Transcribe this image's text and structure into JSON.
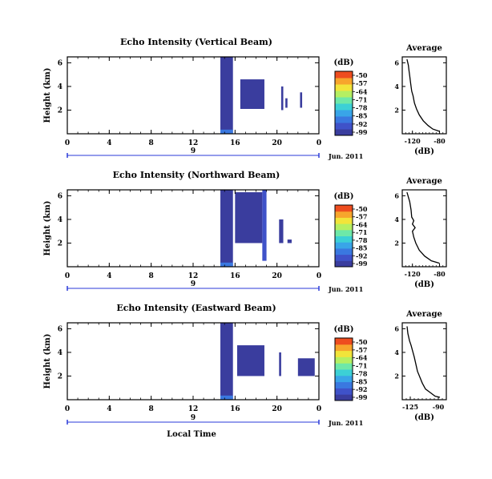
{
  "chart_data": [
    {
      "type": "heatmap",
      "title": "Echo Intensity (Vertical Beam)",
      "ylabel": "Height (km)",
      "xlabel": "",
      "x_ticks": [
        "0",
        "4",
        "8",
        "12",
        "16",
        "20",
        "0"
      ],
      "y_ticks": [
        "6",
        "4",
        "2"
      ],
      "xlim": [
        0,
        24
      ],
      "ylim": [
        0,
        6.5
      ],
      "date_label": "9",
      "month_label": "Jun. 2011",
      "colorbar": {
        "unit": "(dB)",
        "ticks": [
          "-50",
          "-57",
          "-64",
          "-71",
          "-78",
          "-85",
          "-92",
          "-99"
        ],
        "range": [
          -99,
          -50
        ]
      },
      "data_blocks": [
        {
          "x": [
            14.6,
            15.8
          ],
          "y": [
            0,
            6.5
          ],
          "dB": -97
        },
        {
          "x": [
            14.6,
            15.8
          ],
          "y": [
            0,
            0.35
          ],
          "dB": -85
        },
        {
          "x": [
            16.5,
            18.8
          ],
          "y": [
            2.1,
            4.6
          ],
          "dB": -96
        },
        {
          "x": [
            20.4,
            20.6
          ],
          "y": [
            2.0,
            4.0
          ],
          "dB": -96
        },
        {
          "x": [
            20.8,
            21.0
          ],
          "y": [
            2.2,
            3.0
          ],
          "dB": -96
        },
        {
          "x": [
            22.2,
            22.4
          ],
          "y": [
            2.2,
            3.5
          ],
          "dB": -96
        }
      ],
      "profile": {
        "title": "Average",
        "xlabel": "(dB)",
        "x_ticks": [
          "-120",
          "-80"
        ],
        "xlim": [
          -135,
          -70
        ],
        "y_ticks": [
          "6",
          "4",
          "2"
        ],
        "ylim": [
          0,
          6.5
        ],
        "points": [
          [
            -128,
            6.3
          ],
          [
            -126,
            5.8
          ],
          [
            -125,
            5.3
          ],
          [
            -124,
            4.9
          ],
          [
            -123,
            4.4
          ],
          [
            -122,
            4.0
          ],
          [
            -121,
            3.6
          ],
          [
            -119,
            3.2
          ],
          [
            -117,
            2.6
          ],
          [
            -114,
            2.1
          ],
          [
            -110,
            1.6
          ],
          [
            -104,
            1.1
          ],
          [
            -97,
            0.7
          ],
          [
            -90,
            0.4
          ],
          [
            -80,
            0.2
          ]
        ]
      }
    },
    {
      "type": "heatmap",
      "title": "Echo Intensity (Northward Beam)",
      "ylabel": "Height (km)",
      "xlabel": "",
      "x_ticks": [
        "0",
        "4",
        "8",
        "12",
        "16",
        "20",
        "0"
      ],
      "y_ticks": [
        "6",
        "4",
        "2"
      ],
      "xlim": [
        0,
        24
      ],
      "ylim": [
        0,
        6.5
      ],
      "date_label": "9",
      "month_label": "Jun. 2011",
      "colorbar": {
        "unit": "(dB)",
        "ticks": [
          "-50",
          "-57",
          "-64",
          "-71",
          "-78",
          "-85",
          "-92",
          "-99"
        ],
        "range": [
          -99,
          -50
        ]
      },
      "data_blocks": [
        {
          "x": [
            14.6,
            15.8
          ],
          "y": [
            0,
            6.5
          ],
          "dB": -97
        },
        {
          "x": [
            14.6,
            15.8
          ],
          "y": [
            0,
            0.35
          ],
          "dB": -85
        },
        {
          "x": [
            16.0,
            18.6
          ],
          "y": [
            2.0,
            6.3
          ],
          "dB": -96
        },
        {
          "x": [
            18.6,
            19.0
          ],
          "y": [
            0.5,
            6.5
          ],
          "dB": -94
        },
        {
          "x": [
            20.2,
            20.6
          ],
          "y": [
            2.0,
            4.0
          ],
          "dB": -96
        },
        {
          "x": [
            21.0,
            21.4
          ],
          "y": [
            2.0,
            2.3
          ],
          "dB": -96
        }
      ],
      "profile": {
        "title": "Average",
        "xlabel": "(dB)",
        "x_ticks": [
          "-120",
          "-80"
        ],
        "xlim": [
          -135,
          -70
        ],
        "y_ticks": [
          "6",
          "4",
          "2"
        ],
        "ylim": [
          0,
          6.5
        ],
        "points": [
          [
            -128,
            6.3
          ],
          [
            -124,
            5.5
          ],
          [
            -122,
            4.8
          ],
          [
            -121,
            4.2
          ],
          [
            -118,
            3.9
          ],
          [
            -120,
            3.6
          ],
          [
            -116,
            3.3
          ],
          [
            -120,
            3.0
          ],
          [
            -118,
            2.5
          ],
          [
            -115,
            2.0
          ],
          [
            -110,
            1.4
          ],
          [
            -102,
            0.9
          ],
          [
            -92,
            0.5
          ],
          [
            -80,
            0.3
          ]
        ]
      }
    },
    {
      "type": "heatmap",
      "title": "Echo Intensity (Eastward Beam)",
      "ylabel": "Height (km)",
      "xlabel": "Local Time",
      "x_ticks": [
        "0",
        "4",
        "8",
        "12",
        "16",
        "20",
        "0"
      ],
      "y_ticks": [
        "6",
        "4",
        "2"
      ],
      "xlim": [
        0,
        24
      ],
      "ylim": [
        0,
        6.5
      ],
      "date_label": "9",
      "month_label": "Jun. 2011",
      "colorbar": {
        "unit": "(dB)",
        "ticks": [
          "-50",
          "-57",
          "-64",
          "-71",
          "-78",
          "-85",
          "-92",
          "-99"
        ],
        "range": [
          -99,
          -50
        ]
      },
      "data_blocks": [
        {
          "x": [
            14.6,
            15.8
          ],
          "y": [
            0,
            6.5
          ],
          "dB": -97
        },
        {
          "x": [
            14.6,
            15.8
          ],
          "y": [
            0,
            0.35
          ],
          "dB": -85
        },
        {
          "x": [
            16.2,
            18.8
          ],
          "y": [
            2.0,
            4.6
          ],
          "dB": -96
        },
        {
          "x": [
            20.2,
            20.4
          ],
          "y": [
            2.0,
            4.0
          ],
          "dB": -96
        },
        {
          "x": [
            22.0,
            23.6
          ],
          "y": [
            2.0,
            3.5
          ],
          "dB": -96
        }
      ],
      "profile": {
        "title": "Average",
        "xlabel": "(dB)",
        "x_ticks": [
          "-125",
          "-90"
        ],
        "xlim": [
          -135,
          -80
        ],
        "y_ticks": [
          "6",
          "4",
          "2"
        ],
        "ylim": [
          0,
          6.5
        ],
        "points": [
          [
            -129,
            6.2
          ],
          [
            -128,
            5.6
          ],
          [
            -126,
            5.0
          ],
          [
            -124,
            4.6
          ],
          [
            -122,
            4.1
          ],
          [
            -120,
            3.6
          ],
          [
            -118,
            3.0
          ],
          [
            -116,
            2.4
          ],
          [
            -113,
            1.9
          ],
          [
            -110,
            1.4
          ],
          [
            -106,
            0.9
          ],
          [
            -100,
            0.6
          ],
          [
            -94,
            0.3
          ],
          [
            -88,
            0.2
          ]
        ]
      }
    }
  ]
}
